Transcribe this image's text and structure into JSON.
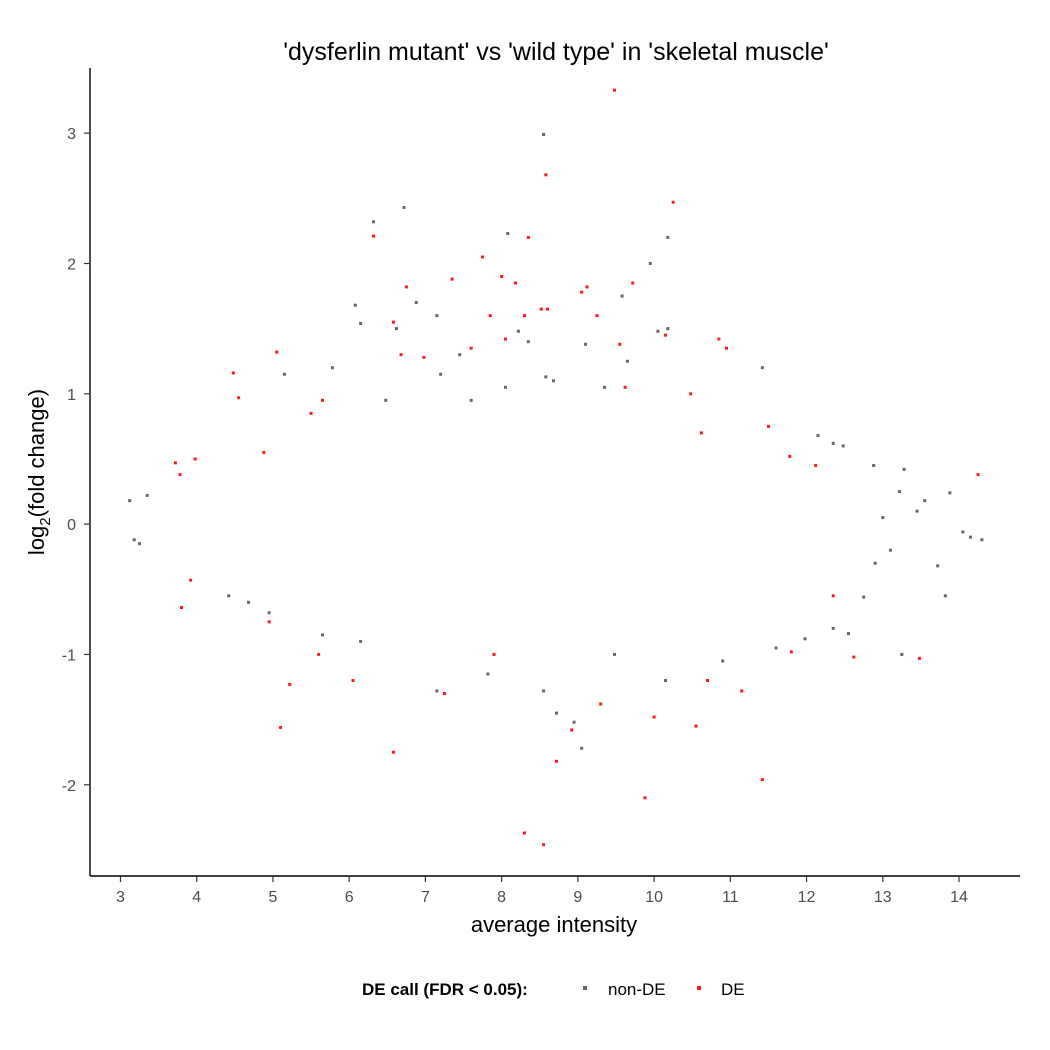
{
  "chart_data": {
    "type": "scatter",
    "title": "'dysferlin mutant' vs 'wild type' in 'skeletal muscle'",
    "xlabel": "average intensity",
    "ylabel": "log2(fold change)",
    "ylabel_parts": {
      "pre": "log",
      "sub": "2",
      "post": "(fold change)"
    },
    "xlim": [
      2.6,
      14.8
    ],
    "ylim": [
      -2.7,
      3.5
    ],
    "x_ticks": [
      3,
      4,
      5,
      6,
      7,
      8,
      9,
      10,
      11,
      12,
      13,
      14
    ],
    "y_ticks": [
      -2,
      -1,
      0,
      1,
      2,
      3
    ],
    "grid": false,
    "legend": {
      "position": "bottom",
      "title": "DE call (FDR < 0.05):",
      "entries": [
        {
          "label": "non-DE",
          "color": "#666666"
        },
        {
          "label": "DE",
          "color": "#ff1a1a"
        }
      ]
    },
    "series": [
      {
        "name": "non-DE",
        "color": "#666666",
        "points": [
          [
            8.55,
            2.99
          ],
          [
            6.72,
            2.43
          ],
          [
            6.32,
            2.32
          ],
          [
            8.08,
            2.23
          ],
          [
            10.18,
            2.2
          ],
          [
            9.95,
            2.0
          ],
          [
            6.08,
            1.68
          ],
          [
            6.88,
            1.7
          ],
          [
            9.58,
            1.75
          ],
          [
            10.05,
            1.48
          ],
          [
            10.18,
            1.5
          ],
          [
            6.15,
            1.54
          ],
          [
            7.15,
            1.6
          ],
          [
            7.2,
            1.15
          ],
          [
            7.45,
            1.3
          ],
          [
            8.22,
            1.48
          ],
          [
            8.35,
            1.4
          ],
          [
            8.58,
            1.13
          ],
          [
            9.1,
            1.38
          ],
          [
            9.65,
            1.25
          ],
          [
            11.42,
            1.2
          ],
          [
            5.78,
            1.2
          ],
          [
            6.62,
            1.5
          ],
          [
            5.15,
            1.15
          ],
          [
            8.68,
            1.1
          ],
          [
            12.15,
            0.68
          ],
          [
            12.35,
            0.62
          ],
          [
            12.48,
            0.6
          ],
          [
            12.88,
            0.45
          ],
          [
            13.28,
            0.42
          ],
          [
            13.22,
            0.25
          ],
          [
            13.55,
            0.18
          ],
          [
            13.88,
            0.24
          ],
          [
            14.05,
            -0.06
          ],
          [
            14.15,
            -0.1
          ],
          [
            14.3,
            -0.12
          ],
          [
            13.72,
            -0.32
          ],
          [
            13.82,
            -0.55
          ],
          [
            12.75,
            -0.56
          ],
          [
            12.35,
            -0.8
          ],
          [
            11.98,
            -0.88
          ],
          [
            13.25,
            -1.0
          ],
          [
            9.48,
            -1.0
          ],
          [
            8.55,
            -1.28
          ],
          [
            8.72,
            -1.45
          ],
          [
            8.95,
            -1.52
          ],
          [
            9.05,
            -1.72
          ],
          [
            7.82,
            -1.15
          ],
          [
            7.15,
            -1.28
          ],
          [
            3.12,
            0.18
          ],
          [
            3.18,
            -0.12
          ],
          [
            3.25,
            -0.15
          ],
          [
            3.35,
            0.22
          ],
          [
            4.42,
            -0.55
          ],
          [
            4.68,
            -0.6
          ],
          [
            4.95,
            -0.68
          ],
          [
            5.65,
            -0.85
          ],
          [
            6.15,
            -0.9
          ],
          [
            10.15,
            -1.2
          ],
          [
            10.9,
            -1.05
          ],
          [
            11.6,
            -0.95
          ],
          [
            12.55,
            -0.84
          ],
          [
            13.0,
            0.05
          ],
          [
            13.45,
            0.1
          ],
          [
            12.9,
            -0.3
          ],
          [
            13.1,
            -0.2
          ],
          [
            9.35,
            1.05
          ],
          [
            7.6,
            0.95
          ],
          [
            8.05,
            1.05
          ],
          [
            6.48,
            0.95
          ]
        ]
      },
      {
        "name": "DE",
        "color": "#ff1a1a",
        "points": [
          [
            9.48,
            3.33
          ],
          [
            8.58,
            2.68
          ],
          [
            10.25,
            2.47
          ],
          [
            6.32,
            2.21
          ],
          [
            8.35,
            2.2
          ],
          [
            7.75,
            2.05
          ],
          [
            8.0,
            1.9
          ],
          [
            7.35,
            1.88
          ],
          [
            6.75,
            1.82
          ],
          [
            8.18,
            1.85
          ],
          [
            9.12,
            1.82
          ],
          [
            9.72,
            1.85
          ],
          [
            9.05,
            1.78
          ],
          [
            8.6,
            1.65
          ],
          [
            8.52,
            1.65
          ],
          [
            9.25,
            1.6
          ],
          [
            6.58,
            1.55
          ],
          [
            7.85,
            1.6
          ],
          [
            8.3,
            1.6
          ],
          [
            6.98,
            1.28
          ],
          [
            7.6,
            1.35
          ],
          [
            8.05,
            1.42
          ],
          [
            10.85,
            1.42
          ],
          [
            10.95,
            1.35
          ],
          [
            5.05,
            1.32
          ],
          [
            4.48,
            1.16
          ],
          [
            4.55,
            0.97
          ],
          [
            6.68,
            1.3
          ],
          [
            9.55,
            1.38
          ],
          [
            10.15,
            1.45
          ],
          [
            3.72,
            0.47
          ],
          [
            3.78,
            0.38
          ],
          [
            3.98,
            0.5
          ],
          [
            11.78,
            0.52
          ],
          [
            12.12,
            0.45
          ],
          [
            14.25,
            0.38
          ],
          [
            3.8,
            -0.64
          ],
          [
            3.92,
            -0.43
          ],
          [
            5.22,
            -1.23
          ],
          [
            5.1,
            -1.56
          ],
          [
            6.58,
            -1.75
          ],
          [
            9.88,
            -2.1
          ],
          [
            8.55,
            -2.46
          ],
          [
            8.3,
            -2.37
          ],
          [
            8.72,
            -1.82
          ],
          [
            8.92,
            -1.58
          ],
          [
            9.3,
            -1.38
          ],
          [
            10.55,
            -1.55
          ],
          [
            11.42,
            -1.96
          ],
          [
            10.0,
            -1.48
          ],
          [
            11.15,
            -1.28
          ],
          [
            12.62,
            -1.02
          ],
          [
            13.48,
            -1.03
          ],
          [
            7.9,
            -1.0
          ],
          [
            7.25,
            -1.3
          ],
          [
            6.05,
            -1.2
          ],
          [
            5.6,
            -1.0
          ],
          [
            4.95,
            -0.75
          ],
          [
            11.8,
            -0.98
          ],
          [
            10.7,
            -1.2
          ],
          [
            5.5,
            0.85
          ],
          [
            5.65,
            0.95
          ],
          [
            4.88,
            0.55
          ],
          [
            10.62,
            0.7
          ],
          [
            11.5,
            0.75
          ],
          [
            12.35,
            -0.55
          ],
          [
            9.62,
            1.05
          ],
          [
            10.48,
            1.0
          ]
        ]
      }
    ]
  }
}
